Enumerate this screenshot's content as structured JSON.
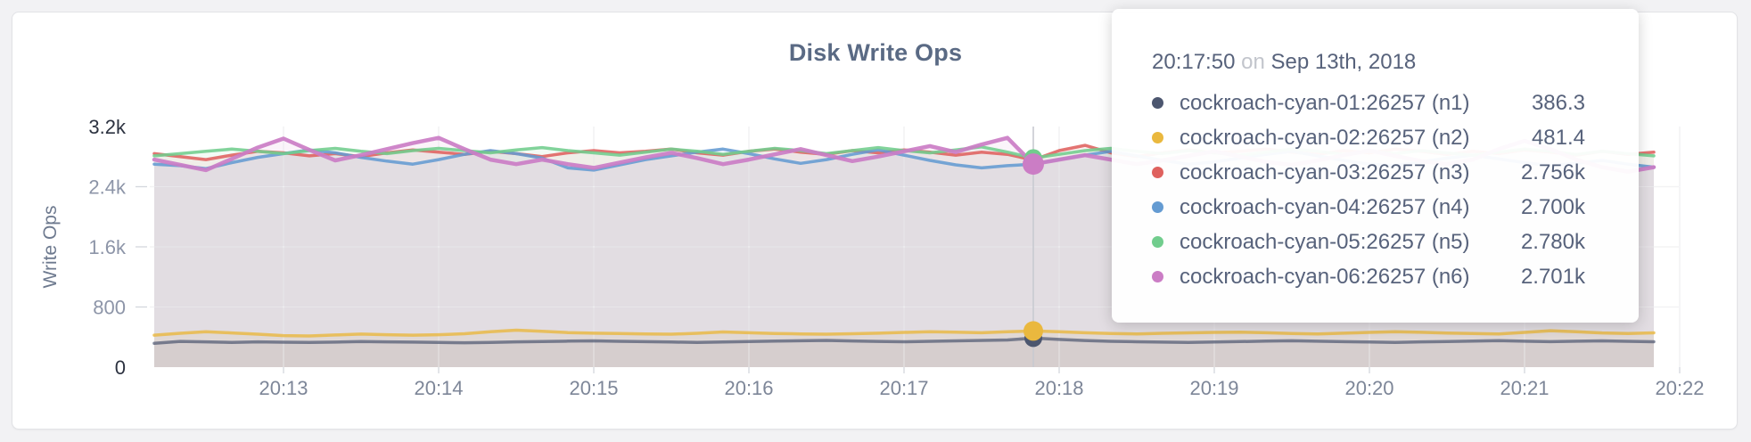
{
  "title": "Disk Write Ops",
  "tooltip": {
    "time": "20:17:50",
    "conjunction": "on",
    "date": "Sep 13th, 2018",
    "rows": [
      {
        "label": "cockroach-cyan-01:26257 (n1)",
        "value": "386.3",
        "color": "#4c566f"
      },
      {
        "label": "cockroach-cyan-02:26257 (n2)",
        "value": "481.4",
        "color": "#eab83e"
      },
      {
        "label": "cockroach-cyan-03:26257 (n3)",
        "value": "2.756k",
        "color": "#df615e"
      },
      {
        "label": "cockroach-cyan-04:26257 (n4)",
        "value": "2.700k",
        "color": "#649bd2"
      },
      {
        "label": "cockroach-cyan-05:26257 (n5)",
        "value": "2.780k",
        "color": "#71cd8d"
      },
      {
        "label": "cockroach-cyan-06:26257 (n6)",
        "value": "2.701k",
        "color": "#cb7dc5"
      }
    ]
  },
  "chart_data": {
    "type": "line",
    "title": "Disk Write Ops",
    "ylabel": "Write Ops",
    "ylim": [
      0,
      3200
    ],
    "grid": true,
    "x_start_time": "20:12:10",
    "x_step_seconds": 10,
    "xticks": [
      "20:13",
      "20:14",
      "20:15",
      "20:16",
      "20:17",
      "20:18",
      "20:19",
      "20:20",
      "20:21",
      "20:22"
    ],
    "yticks": [
      {
        "value": 0,
        "label": "0",
        "emphasis": true
      },
      {
        "value": 800,
        "label": "800",
        "emphasis": false
      },
      {
        "value": 1600,
        "label": "1.6k",
        "emphasis": false
      },
      {
        "value": 2400,
        "label": "2.4k",
        "emphasis": false
      },
      {
        "value": 3200,
        "label": "3.2k",
        "emphasis": true
      }
    ],
    "hover": {
      "index": 34,
      "time": "20:17:50"
    },
    "series": [
      {
        "name": "cockroach-cyan-01:26257 (n1)",
        "color": "#4c566f",
        "line_opacity": 0.7,
        "width": 3.5,
        "values": [
          318,
          342,
          336,
          330,
          336,
          332,
          328,
          333,
          340,
          337,
          333,
          328,
          325,
          330,
          336,
          341,
          346,
          350,
          344,
          339,
          334,
          330,
          335,
          341,
          346,
          351,
          355,
          349,
          343,
          338,
          344,
          350,
          356,
          362,
          386,
          368,
          354,
          344,
          338,
          333,
          329,
          334,
          340,
          346,
          351,
          345,
          339,
          334,
          330,
          336,
          341,
          347,
          352,
          345,
          339,
          345,
          350,
          344,
          338
        ]
      },
      {
        "name": "cockroach-cyan-02:26257 (n2)",
        "color": "#eab83e",
        "line_opacity": 0.8,
        "width": 3.5,
        "values": [
          425,
          450,
          472,
          455,
          438,
          420,
          415,
          428,
          440,
          432,
          425,
          432,
          445,
          472,
          492,
          478,
          460,
          452,
          448,
          442,
          438,
          450,
          468,
          458,
          448,
          442,
          438,
          445,
          452,
          462,
          472,
          465,
          458,
          470,
          481,
          470,
          458,
          448,
          442,
          450,
          456,
          462,
          466,
          458,
          448,
          442,
          452,
          462,
          472,
          464,
          454,
          448,
          442,
          462,
          485,
          470,
          455,
          448,
          456
        ]
      },
      {
        "name": "cockroach-cyan-03:26257 (n3)",
        "color": "#df615e",
        "line_opacity": 0.88,
        "width": 3.5,
        "values": [
          2840,
          2800,
          2760,
          2820,
          2870,
          2850,
          2810,
          2840,
          2800,
          2850,
          2890,
          2860,
          2830,
          2870,
          2840,
          2800,
          2850,
          2880,
          2850,
          2870,
          2900,
          2850,
          2820,
          2870,
          2900,
          2860,
          2830,
          2880,
          2850,
          2890,
          2860,
          2820,
          2860,
          2830,
          2756,
          2880,
          2950,
          2850,
          2800,
          2850,
          2890,
          2850,
          2870,
          2900,
          2860,
          2830,
          2880,
          2850,
          2900,
          2870,
          2830,
          2870,
          2840,
          2890,
          2860,
          2820,
          2870,
          2830,
          2860
        ]
      },
      {
        "name": "cockroach-cyan-04:26257 (n4)",
        "color": "#649bd2",
        "line_opacity": 0.88,
        "width": 3.5,
        "values": [
          2700,
          2680,
          2640,
          2720,
          2790,
          2840,
          2890,
          2850,
          2790,
          2740,
          2700,
          2760,
          2830,
          2880,
          2840,
          2780,
          2650,
          2620,
          2690,
          2760,
          2810,
          2860,
          2900,
          2840,
          2770,
          2710,
          2760,
          2830,
          2890,
          2820,
          2750,
          2690,
          2650,
          2680,
          2700,
          2760,
          2820,
          2870,
          2810,
          2750,
          2700,
          2730,
          2780,
          2830,
          2870,
          2810,
          2750,
          2700,
          2680,
          2730,
          2780,
          2820,
          2770,
          2720,
          2680,
          2710,
          2750,
          2700,
          2660
        ]
      },
      {
        "name": "cockroach-cyan-05:26257 (n5)",
        "color": "#71cd8d",
        "line_opacity": 0.88,
        "width": 3.5,
        "values": [
          2810,
          2840,
          2870,
          2900,
          2870,
          2840,
          2880,
          2910,
          2870,
          2840,
          2880,
          2910,
          2880,
          2850,
          2890,
          2920,
          2880,
          2850,
          2820,
          2860,
          2900,
          2870,
          2830,
          2870,
          2910,
          2880,
          2840,
          2880,
          2920,
          2880,
          2850,
          2890,
          2930,
          2860,
          2780,
          2830,
          2880,
          2910,
          2870,
          2840,
          2880,
          2850,
          2820,
          2860,
          2900,
          2870,
          2830,
          2870,
          2840,
          2880,
          2850,
          2820,
          2860,
          2900,
          2870,
          2830,
          2870,
          2840,
          2810
        ]
      },
      {
        "name": "cockroach-cyan-06:26257 (n6)",
        "color": "#cb7dc5",
        "line_opacity": 0.92,
        "width": 4.5,
        "values": [
          2760,
          2690,
          2620,
          2770,
          2920,
          3040,
          2890,
          2750,
          2820,
          2900,
          2980,
          3050,
          2900,
          2760,
          2700,
          2760,
          2700,
          2650,
          2720,
          2790,
          2850,
          2780,
          2700,
          2760,
          2830,
          2900,
          2820,
          2740,
          2800,
          2870,
          2940,
          2860,
          2960,
          3050,
          2701,
          2760,
          2820,
          2760,
          2700,
          2750,
          2810,
          2870,
          2800,
          2730,
          2690,
          2750,
          2820,
          2880,
          2810,
          2740,
          2700,
          2760,
          2900,
          3010,
          2900,
          2760,
          2660,
          2600,
          2660
        ]
      }
    ],
    "colors": {
      "grid_under": "#e3e3e6",
      "grid_over": "rgba(255,255,255,0.55)",
      "tick_mark": "#d4d7dd",
      "x_tick_text": "#7d8698",
      "y_tick_text": "#8d95a8",
      "y_tick_text_emphasis": "#2c3240",
      "hover_guideline": "#c8cad1",
      "fill_opacity": 0.085
    }
  }
}
